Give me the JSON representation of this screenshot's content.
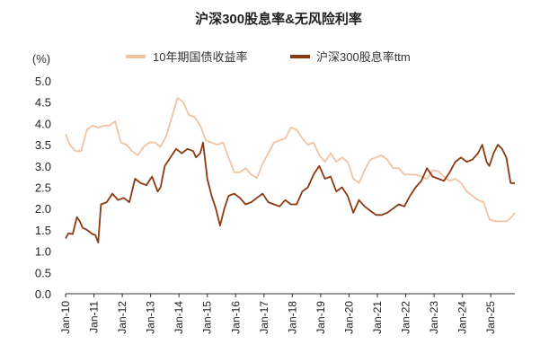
{
  "chart_data": {
    "type": "line",
    "title": "沪深300股息率&无风险利率",
    "unit": "(%)",
    "ylim": [
      0.0,
      5.0
    ],
    "yticks": [
      "0.0",
      "0.5",
      "1.0",
      "1.5",
      "2.0",
      "2.5",
      "3.0",
      "3.5",
      "4.0",
      "4.5",
      "5.0"
    ],
    "xlim": [
      2010.0,
      2025.85
    ],
    "xticks": [
      {
        "label": "Jan-10",
        "x": 2010.0
      },
      {
        "label": "Jan-11",
        "x": 2011.0
      },
      {
        "label": "Jan-12",
        "x": 2012.0
      },
      {
        "label": "Jan-13",
        "x": 2013.0
      },
      {
        "label": "Jan-14",
        "x": 2014.0
      },
      {
        "label": "Jan-15",
        "x": 2015.0
      },
      {
        "label": "Jan-16",
        "x": 2016.0
      },
      {
        "label": "Jan-17",
        "x": 2017.0
      },
      {
        "label": "Jan-18",
        "x": 2018.0
      },
      {
        "label": "Jan-19",
        "x": 2019.0
      },
      {
        "label": "Jan-20",
        "x": 2020.0
      },
      {
        "label": "Jan-21",
        "x": 2021.0
      },
      {
        "label": "Jan-22",
        "x": 2022.0
      },
      {
        "label": "Jan-23",
        "x": 2023.0
      },
      {
        "label": "Jan-24",
        "x": 2024.0
      },
      {
        "label": "Jan-25",
        "x": 2025.0
      }
    ],
    "legend_position": "top",
    "series": [
      {
        "name": "10年期国债收益率",
        "color": "#f2c3a3",
        "points": [
          [
            2010.0,
            3.75
          ],
          [
            2010.15,
            3.5
          ],
          [
            2010.35,
            3.35
          ],
          [
            2010.55,
            3.35
          ],
          [
            2010.75,
            3.85
          ],
          [
            2010.95,
            3.95
          ],
          [
            2011.15,
            3.9
          ],
          [
            2011.35,
            3.95
          ],
          [
            2011.55,
            3.95
          ],
          [
            2011.75,
            4.05
          ],
          [
            2011.95,
            3.55
          ],
          [
            2012.15,
            3.5
          ],
          [
            2012.35,
            3.35
          ],
          [
            2012.55,
            3.25
          ],
          [
            2012.75,
            3.45
          ],
          [
            2012.95,
            3.55
          ],
          [
            2013.15,
            3.55
          ],
          [
            2013.35,
            3.45
          ],
          [
            2013.55,
            3.7
          ],
          [
            2013.75,
            4.15
          ],
          [
            2013.95,
            4.6
          ],
          [
            2014.15,
            4.5
          ],
          [
            2014.35,
            4.2
          ],
          [
            2014.55,
            4.15
          ],
          [
            2014.75,
            3.95
          ],
          [
            2014.95,
            3.6
          ],
          [
            2015.15,
            3.55
          ],
          [
            2015.35,
            3.5
          ],
          [
            2015.55,
            3.55
          ],
          [
            2015.75,
            3.2
          ],
          [
            2015.95,
            2.85
          ],
          [
            2016.15,
            2.85
          ],
          [
            2016.35,
            2.95
          ],
          [
            2016.55,
            2.8
          ],
          [
            2016.75,
            2.72
          ],
          [
            2016.95,
            3.05
          ],
          [
            2017.15,
            3.3
          ],
          [
            2017.35,
            3.55
          ],
          [
            2017.55,
            3.6
          ],
          [
            2017.75,
            3.65
          ],
          [
            2017.95,
            3.9
          ],
          [
            2018.15,
            3.85
          ],
          [
            2018.35,
            3.65
          ],
          [
            2018.55,
            3.5
          ],
          [
            2018.75,
            3.55
          ],
          [
            2018.95,
            3.25
          ],
          [
            2019.15,
            3.1
          ],
          [
            2019.35,
            3.3
          ],
          [
            2019.55,
            3.1
          ],
          [
            2019.75,
            3.2
          ],
          [
            2019.95,
            3.1
          ],
          [
            2020.15,
            2.7
          ],
          [
            2020.35,
            2.6
          ],
          [
            2020.55,
            2.9
          ],
          [
            2020.75,
            3.15
          ],
          [
            2020.95,
            3.2
          ],
          [
            2021.15,
            3.25
          ],
          [
            2021.35,
            3.15
          ],
          [
            2021.55,
            2.95
          ],
          [
            2021.75,
            2.95
          ],
          [
            2021.95,
            2.8
          ],
          [
            2022.15,
            2.8
          ],
          [
            2022.35,
            2.8
          ],
          [
            2022.55,
            2.75
          ],
          [
            2022.75,
            2.7
          ],
          [
            2022.95,
            2.9
          ],
          [
            2023.15,
            2.88
          ],
          [
            2023.35,
            2.75
          ],
          [
            2023.55,
            2.65
          ],
          [
            2023.75,
            2.7
          ],
          [
            2023.95,
            2.6
          ],
          [
            2024.15,
            2.4
          ],
          [
            2024.35,
            2.3
          ],
          [
            2024.55,
            2.2
          ],
          [
            2024.75,
            2.15
          ],
          [
            2024.95,
            1.75
          ],
          [
            2025.15,
            1.7
          ],
          [
            2025.35,
            1.7
          ],
          [
            2025.55,
            1.7
          ],
          [
            2025.7,
            1.78
          ],
          [
            2025.85,
            1.9
          ]
        ]
      },
      {
        "name": "沪深300股息率ttm",
        "color": "#8b3a12",
        "points": [
          [
            2010.0,
            1.3
          ],
          [
            2010.1,
            1.42
          ],
          [
            2010.25,
            1.4
          ],
          [
            2010.4,
            1.8
          ],
          [
            2010.5,
            1.7
          ],
          [
            2010.6,
            1.55
          ],
          [
            2010.75,
            1.5
          ],
          [
            2010.95,
            1.4
          ],
          [
            2011.05,
            1.38
          ],
          [
            2011.15,
            1.2
          ],
          [
            2011.25,
            2.1
          ],
          [
            2011.45,
            2.15
          ],
          [
            2011.65,
            2.35
          ],
          [
            2011.85,
            2.2
          ],
          [
            2012.05,
            2.25
          ],
          [
            2012.25,
            2.15
          ],
          [
            2012.45,
            2.7
          ],
          [
            2012.65,
            2.6
          ],
          [
            2012.85,
            2.55
          ],
          [
            2013.05,
            2.75
          ],
          [
            2013.25,
            2.4
          ],
          [
            2013.35,
            2.5
          ],
          [
            2013.5,
            3.0
          ],
          [
            2013.7,
            3.2
          ],
          [
            2013.9,
            3.4
          ],
          [
            2014.1,
            3.3
          ],
          [
            2014.3,
            3.4
          ],
          [
            2014.5,
            3.35
          ],
          [
            2014.6,
            3.2
          ],
          [
            2014.75,
            3.3
          ],
          [
            2014.85,
            3.55
          ],
          [
            2015.0,
            2.7
          ],
          [
            2015.15,
            2.3
          ],
          [
            2015.3,
            2.0
          ],
          [
            2015.45,
            1.6
          ],
          [
            2015.6,
            2.0
          ],
          [
            2015.75,
            2.3
          ],
          [
            2015.95,
            2.35
          ],
          [
            2016.15,
            2.25
          ],
          [
            2016.35,
            2.1
          ],
          [
            2016.55,
            2.15
          ],
          [
            2016.75,
            2.25
          ],
          [
            2016.95,
            2.35
          ],
          [
            2017.15,
            2.15
          ],
          [
            2017.35,
            2.1
          ],
          [
            2017.55,
            2.05
          ],
          [
            2017.75,
            2.2
          ],
          [
            2017.95,
            2.1
          ],
          [
            2018.15,
            2.1
          ],
          [
            2018.35,
            2.4
          ],
          [
            2018.55,
            2.5
          ],
          [
            2018.75,
            2.8
          ],
          [
            2018.95,
            3.0
          ],
          [
            2019.15,
            2.7
          ],
          [
            2019.35,
            2.75
          ],
          [
            2019.55,
            2.4
          ],
          [
            2019.75,
            2.5
          ],
          [
            2019.95,
            2.3
          ],
          [
            2020.15,
            1.9
          ],
          [
            2020.35,
            2.2
          ],
          [
            2020.55,
            2.05
          ],
          [
            2020.75,
            1.95
          ],
          [
            2020.95,
            1.85
          ],
          [
            2021.15,
            1.85
          ],
          [
            2021.35,
            1.9
          ],
          [
            2021.55,
            2.0
          ],
          [
            2021.75,
            2.1
          ],
          [
            2021.95,
            2.05
          ],
          [
            2022.15,
            2.3
          ],
          [
            2022.35,
            2.5
          ],
          [
            2022.55,
            2.65
          ],
          [
            2022.75,
            2.95
          ],
          [
            2022.95,
            2.75
          ],
          [
            2023.15,
            2.7
          ],
          [
            2023.35,
            2.65
          ],
          [
            2023.55,
            2.85
          ],
          [
            2023.75,
            3.1
          ],
          [
            2023.95,
            3.2
          ],
          [
            2024.15,
            3.1
          ],
          [
            2024.35,
            3.15
          ],
          [
            2024.55,
            3.3
          ],
          [
            2024.7,
            3.5
          ],
          [
            2024.85,
            3.1
          ],
          [
            2024.95,
            3.0
          ],
          [
            2025.1,
            3.3
          ],
          [
            2025.25,
            3.5
          ],
          [
            2025.4,
            3.4
          ],
          [
            2025.55,
            3.2
          ],
          [
            2025.7,
            2.6
          ],
          [
            2025.85,
            2.6
          ]
        ]
      }
    ]
  }
}
